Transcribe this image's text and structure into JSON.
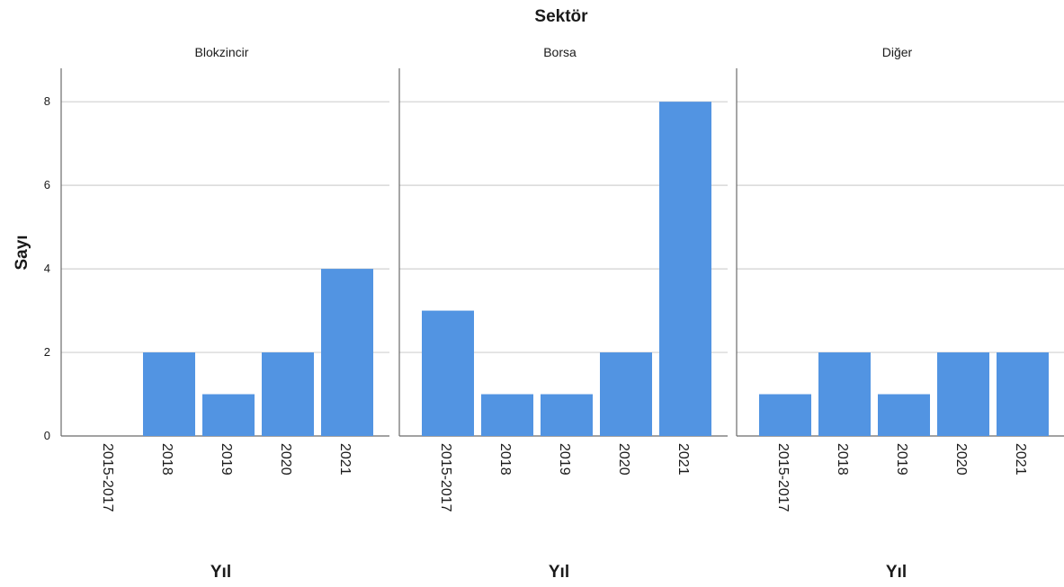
{
  "chart_data": {
    "type": "bar",
    "title": "Sektör",
    "ylabel": "Sayı",
    "xlabel": "Yıl",
    "ylim": [
      0,
      8.8
    ],
    "yticks": [
      0,
      2,
      4,
      6,
      8
    ],
    "grid": true,
    "categories": [
      "2015-2017",
      "2018",
      "2019",
      "2020",
      "2021"
    ],
    "bar_color": "#5294e2",
    "panels": [
      {
        "name": "Blokzincir",
        "values": [
          0,
          2,
          1,
          2,
          4
        ]
      },
      {
        "name": "Borsa",
        "values": [
          3,
          1,
          1,
          2,
          8
        ]
      },
      {
        "name": "Diğer",
        "values": [
          1,
          2,
          1,
          2,
          2
        ]
      }
    ]
  }
}
